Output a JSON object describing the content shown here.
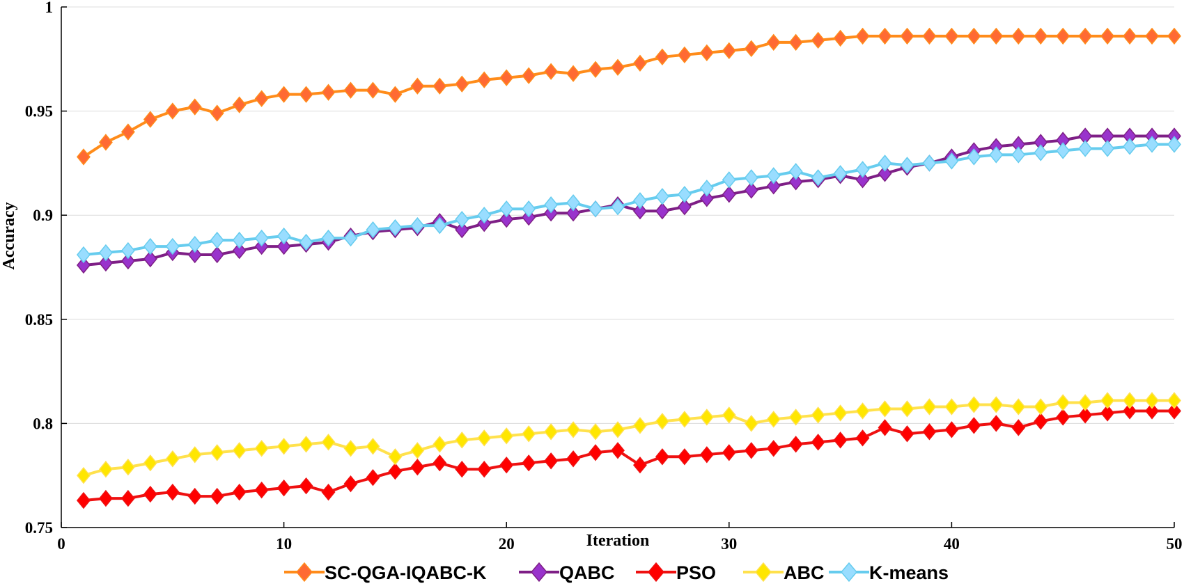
{
  "chart_data": {
    "type": "line",
    "title": "",
    "xlabel": "Iteration",
    "ylabel": "Accuracy",
    "xlim": [
      0,
      50
    ],
    "ylim": [
      0.75,
      1
    ],
    "x_ticks": [
      0,
      10,
      20,
      30,
      40,
      50
    ],
    "x_tick_labels": [
      "0",
      "10",
      "20",
      "30",
      "40",
      "50"
    ],
    "y_ticks": [
      0.75,
      0.8,
      0.85,
      0.9,
      0.95,
      1
    ],
    "y_tick_labels": [
      "0.75",
      "0.8",
      "0.85",
      "0.9",
      "0.95",
      "1"
    ],
    "grid": "horizontal",
    "legend_position": "bottom",
    "x": [
      1,
      2,
      3,
      4,
      5,
      6,
      7,
      8,
      9,
      10,
      11,
      12,
      13,
      14,
      15,
      16,
      17,
      18,
      19,
      20,
      21,
      22,
      23,
      24,
      25,
      26,
      27,
      28,
      29,
      30,
      31,
      32,
      33,
      34,
      35,
      36,
      37,
      38,
      39,
      40,
      41,
      42,
      43,
      44,
      45,
      46,
      47,
      48,
      49,
      50
    ],
    "series": [
      {
        "name": "SC-QGA-IQABC-K",
        "line_color": "#FF8C1A",
        "marker_color": "#FF6A33",
        "values": [
          0.928,
          0.935,
          0.94,
          0.946,
          0.95,
          0.952,
          0.949,
          0.953,
          0.956,
          0.958,
          0.958,
          0.959,
          0.96,
          0.96,
          0.958,
          0.962,
          0.962,
          0.963,
          0.965,
          0.966,
          0.967,
          0.969,
          0.968,
          0.97,
          0.971,
          0.973,
          0.976,
          0.977,
          0.978,
          0.979,
          0.98,
          0.983,
          0.983,
          0.984,
          0.985,
          0.986,
          0.986,
          0.986,
          0.986,
          0.986,
          0.986,
          0.986,
          0.986,
          0.986,
          0.986,
          0.986,
          0.986,
          0.986,
          0.986,
          0.986
        ]
      },
      {
        "name": "QABC",
        "line_color": "#7E1F86",
        "marker_color": "#9933CC",
        "values": [
          0.876,
          0.877,
          0.878,
          0.879,
          0.882,
          0.881,
          0.881,
          0.883,
          0.885,
          0.885,
          0.886,
          0.887,
          0.89,
          0.892,
          0.893,
          0.894,
          0.897,
          0.893,
          0.896,
          0.898,
          0.899,
          0.901,
          0.901,
          0.903,
          0.905,
          0.902,
          0.902,
          0.904,
          0.908,
          0.91,
          0.912,
          0.914,
          0.916,
          0.917,
          0.919,
          0.917,
          0.92,
          0.923,
          0.925,
          0.928,
          0.931,
          0.933,
          0.934,
          0.935,
          0.936,
          0.938,
          0.938,
          0.938,
          0.938,
          0.938
        ]
      },
      {
        "name": "PSO",
        "line_color": "#EE1111",
        "marker_color": "#FF0000",
        "values": [
          0.763,
          0.764,
          0.764,
          0.766,
          0.767,
          0.765,
          0.765,
          0.767,
          0.768,
          0.769,
          0.77,
          0.767,
          0.771,
          0.774,
          0.777,
          0.779,
          0.781,
          0.778,
          0.778,
          0.78,
          0.781,
          0.782,
          0.783,
          0.786,
          0.787,
          0.78,
          0.784,
          0.784,
          0.785,
          0.786,
          0.787,
          0.788,
          0.79,
          0.791,
          0.792,
          0.793,
          0.798,
          0.795,
          0.796,
          0.797,
          0.799,
          0.8,
          0.798,
          0.801,
          0.803,
          0.804,
          0.805,
          0.806,
          0.806,
          0.806
        ]
      },
      {
        "name": "ABC",
        "line_color": "#FFE14D",
        "marker_color": "#FFE600",
        "values": [
          0.775,
          0.778,
          0.779,
          0.781,
          0.783,
          0.785,
          0.786,
          0.787,
          0.788,
          0.789,
          0.79,
          0.791,
          0.788,
          0.789,
          0.784,
          0.787,
          0.79,
          0.792,
          0.793,
          0.794,
          0.795,
          0.796,
          0.797,
          0.796,
          0.797,
          0.799,
          0.801,
          0.802,
          0.803,
          0.804,
          0.8,
          0.802,
          0.803,
          0.804,
          0.805,
          0.806,
          0.807,
          0.807,
          0.808,
          0.808,
          0.809,
          0.809,
          0.808,
          0.808,
          0.81,
          0.81,
          0.811,
          0.811,
          0.811,
          0.811
        ]
      },
      {
        "name": "K-means",
        "line_color": "#66CCEE",
        "marker_color": "#99DDFF",
        "values": [
          0.881,
          0.882,
          0.883,
          0.885,
          0.885,
          0.886,
          0.888,
          0.888,
          0.889,
          0.89,
          0.887,
          0.889,
          0.889,
          0.893,
          0.894,
          0.895,
          0.895,
          0.898,
          0.9,
          0.903,
          0.903,
          0.905,
          0.906,
          0.903,
          0.904,
          0.907,
          0.909,
          0.91,
          0.913,
          0.917,
          0.918,
          0.919,
          0.921,
          0.918,
          0.92,
          0.922,
          0.925,
          0.924,
          0.925,
          0.926,
          0.928,
          0.929,
          0.929,
          0.93,
          0.931,
          0.932,
          0.932,
          0.933,
          0.934,
          0.934
        ]
      }
    ]
  }
}
